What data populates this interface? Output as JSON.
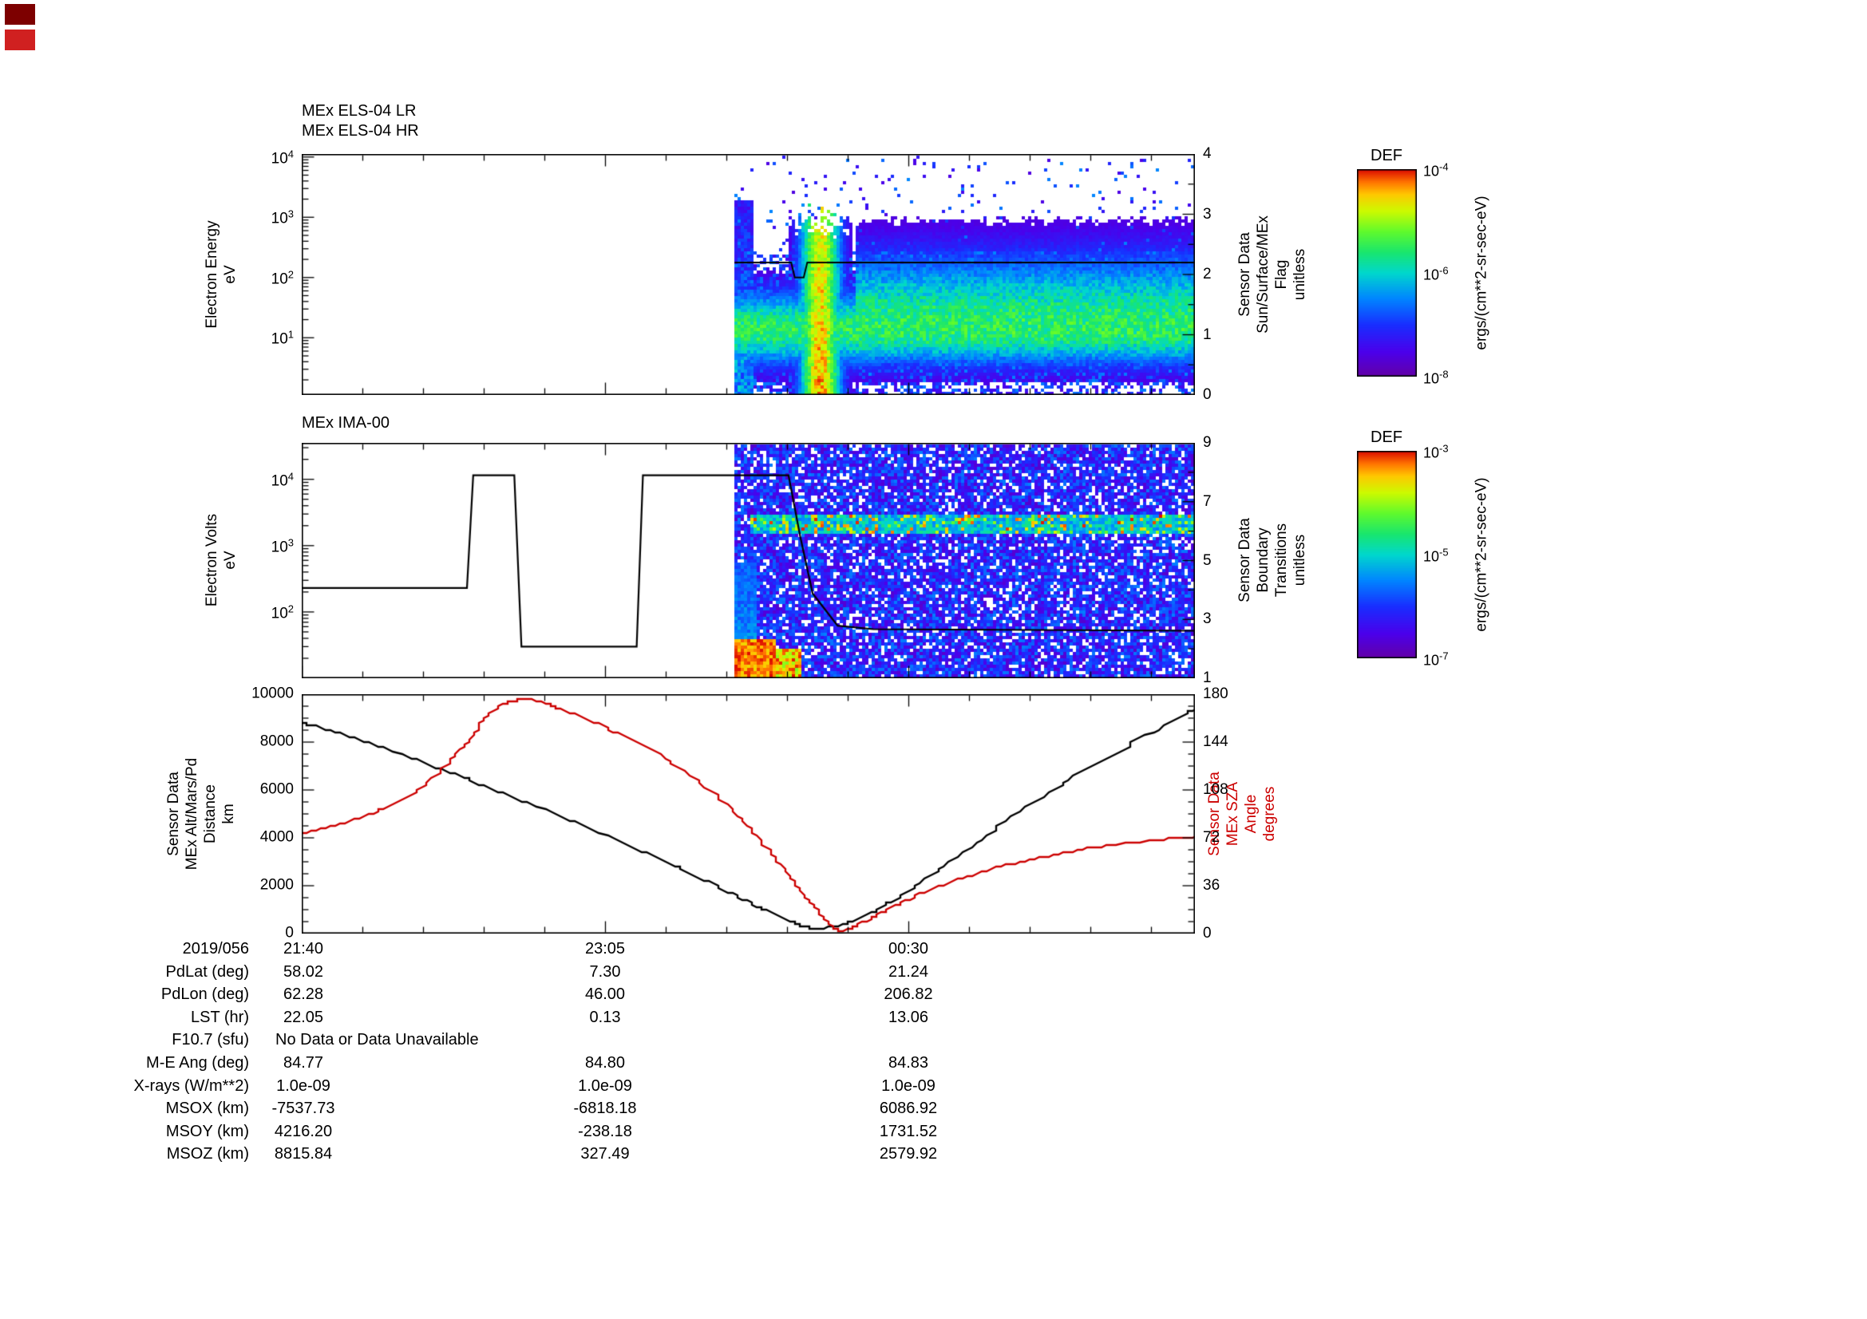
{
  "chart_data": {
    "type": "multi-panel-spectrogram",
    "panels": {
      "els": {
        "type": "heatmap",
        "titles": [
          "MEx ELS-04 LR",
          "MEx ELS-04 HR"
        ],
        "ylabel_lines": [
          "Electron Energy",
          "eV"
        ],
        "yaxis": {
          "scale": "log",
          "min_exp": 0.05,
          "max_exp": 4.05,
          "tick_exps": [
            4,
            3,
            2,
            1
          ]
        },
        "raxis": {
          "label_lines": [
            "Sensor Data",
            "Sun/Surface/MEx",
            "Flag",
            "unitless"
          ],
          "min": 0,
          "max": 4,
          "ticks": [
            4,
            3,
            2,
            1,
            0
          ]
        },
        "colorbar": {
          "title": "DEF",
          "tick_exps": [
            -4,
            -6,
            -8
          ],
          "max_exp": -4,
          "min_exp": -8,
          "unit": "ergs/(cm**2-sr-sec-eV)"
        },
        "data_start_frac": 0.4845,
        "flag_line_raxis": [
          [
            0.4845,
            2.2
          ],
          [
            0.548,
            2.2
          ],
          [
            0.552,
            1.95
          ],
          [
            0.562,
            1.95
          ],
          [
            0.566,
            2.2
          ],
          [
            1,
            2.2
          ]
        ],
        "features": {
          "main_band_logE": 1.15,
          "burst": {
            "t0": 0.543,
            "t1": 0.618,
            "peak_logE": 2.95
          },
          "plume": {
            "t0": 0.4845,
            "t1": 0.505,
            "top_logE": 3.3
          }
        }
      },
      "ima": {
        "type": "heatmap",
        "title": "MEx IMA-00",
        "ylabel_lines": [
          "Electron Volts",
          "eV"
        ],
        "yaxis": {
          "scale": "log",
          "min_exp": 1.0,
          "max_exp": 4.55,
          "tick_exps": [
            4,
            3,
            2
          ]
        },
        "raxis": {
          "label_lines": [
            "Sensor Data",
            "Boundary",
            "Transitions",
            "unitless"
          ],
          "min": 1,
          "max": 9,
          "ticks": [
            9,
            7,
            5,
            3,
            1
          ]
        },
        "colorbar": {
          "title": "DEF",
          "tick_exps": [
            -3,
            -5,
            -7
          ],
          "max_exp": -3,
          "min_exp": -7,
          "unit": "ergs/(cm**2-sr-sec-eV)"
        },
        "data_start_frac": 0.4845,
        "line_ev": [
          [
            0,
            230
          ],
          [
            0.185,
            230
          ],
          [
            0.192,
            11500
          ],
          [
            0.238,
            11500
          ],
          [
            0.246,
            30
          ],
          [
            0.375,
            30
          ],
          [
            0.382,
            11500
          ],
          [
            0.545,
            11500
          ],
          [
            0.558,
            1400
          ],
          [
            0.572,
            190
          ],
          [
            0.6,
            62
          ],
          [
            0.64,
            55
          ],
          [
            1,
            52
          ]
        ],
        "features": {
          "band_logE": 3.33,
          "red_blob": {
            "t1": 0.558,
            "top_logE": 1.45
          },
          "plume": {
            "t0": 0.4845,
            "t1": 0.508,
            "top_logE": 2.75
          }
        }
      },
      "ephem": {
        "type": "line",
        "ylabel_lines": [
          "Sensor Data",
          "MEx Alt/Mars/Pd",
          "Distance",
          "km"
        ],
        "yaxis": {
          "min": 0,
          "max": 10000,
          "ticks": [
            10000,
            8000,
            6000,
            4000,
            2000,
            0
          ]
        },
        "raxis": {
          "label_lines": [
            "Sensor Data",
            "MEx SZA",
            "Angle",
            "degrees"
          ],
          "min": 0,
          "max": 180,
          "ticks": [
            180,
            144,
            108,
            72,
            36,
            0
          ],
          "color": "#cc0000"
        },
        "xticks": [
          "21:40",
          "23:05",
          "00:30"
        ],
        "series": [
          {
            "name": "distance_km",
            "color": "#000000",
            "points": [
              [
                0,
                8800
              ],
              [
                0.07,
                8050
              ],
              [
                0.15,
                6950
              ],
              [
                0.22,
                5950
              ],
              [
                0.3,
                4750
              ],
              [
                0.38,
                3450
              ],
              [
                0.45,
                2250
              ],
              [
                0.51,
                1150
              ],
              [
                0.55,
                480
              ],
              [
                0.575,
                240
              ],
              [
                0.61,
                430
              ],
              [
                0.66,
                1350
              ],
              [
                0.72,
                2850
              ],
              [
                0.79,
                4750
              ],
              [
                0.86,
                6450
              ],
              [
                0.93,
                7950
              ],
              [
                1,
                9400
              ]
            ]
          },
          {
            "name": "sza_deg",
            "color": "#cc0000",
            "points": [
              [
                0,
                75
              ],
              [
                0.07,
                88
              ],
              [
                0.13,
                108
              ],
              [
                0.18,
                140
              ],
              [
                0.215,
                168
              ],
              [
                0.25,
                176
              ],
              [
                0.29,
                169
              ],
              [
                0.35,
                152
              ],
              [
                0.42,
                126
              ],
              [
                0.48,
                94
              ],
              [
                0.53,
                57
              ],
              [
                0.57,
                23
              ],
              [
                0.6,
                3
              ],
              [
                0.63,
                9
              ],
              [
                0.68,
                26
              ],
              [
                0.75,
                44
              ],
              [
                0.82,
                56
              ],
              [
                0.9,
                66
              ],
              [
                1,
                73
              ]
            ]
          }
        ]
      }
    },
    "table": {
      "rows": [
        {
          "label": "2019/056",
          "values": [
            "21:40",
            "23:05",
            "00:30"
          ]
        },
        {
          "label": "PdLat (deg)",
          "values": [
            "58.02",
            "7.30",
            "21.24"
          ]
        },
        {
          "label": "PdLon (deg)",
          "values": [
            "62.28",
            "46.00",
            "206.82"
          ]
        },
        {
          "label": "LST (hr)",
          "values": [
            "22.05",
            "0.13",
            "13.06"
          ]
        },
        {
          "label": "F10.7 (sfu)",
          "values": [],
          "note": "No Data or Data Unavailable"
        },
        {
          "label": "M-E Ang (deg)",
          "values": [
            "84.77",
            "84.80",
            "84.83"
          ]
        },
        {
          "label": "X-rays (W/m**2)",
          "values": [
            "1.0e-09",
            "1.0e-09",
            "1.0e-09"
          ]
        },
        {
          "label": "MSOX (km)",
          "values": [
            "-7537.73",
            "-6818.18",
            "6086.92"
          ]
        },
        {
          "label": "MSOY (km)",
          "values": [
            "4216.20",
            "-238.18",
            "1731.52"
          ]
        },
        {
          "label": "MSOZ (km)",
          "values": [
            "8815.84",
            "327.49",
            "2579.92"
          ]
        }
      ]
    },
    "colors": {
      "curve_black": "#000000",
      "curve_red": "#cc0000",
      "marker_dark": "#7d0000",
      "marker_red": "#d02020"
    }
  }
}
